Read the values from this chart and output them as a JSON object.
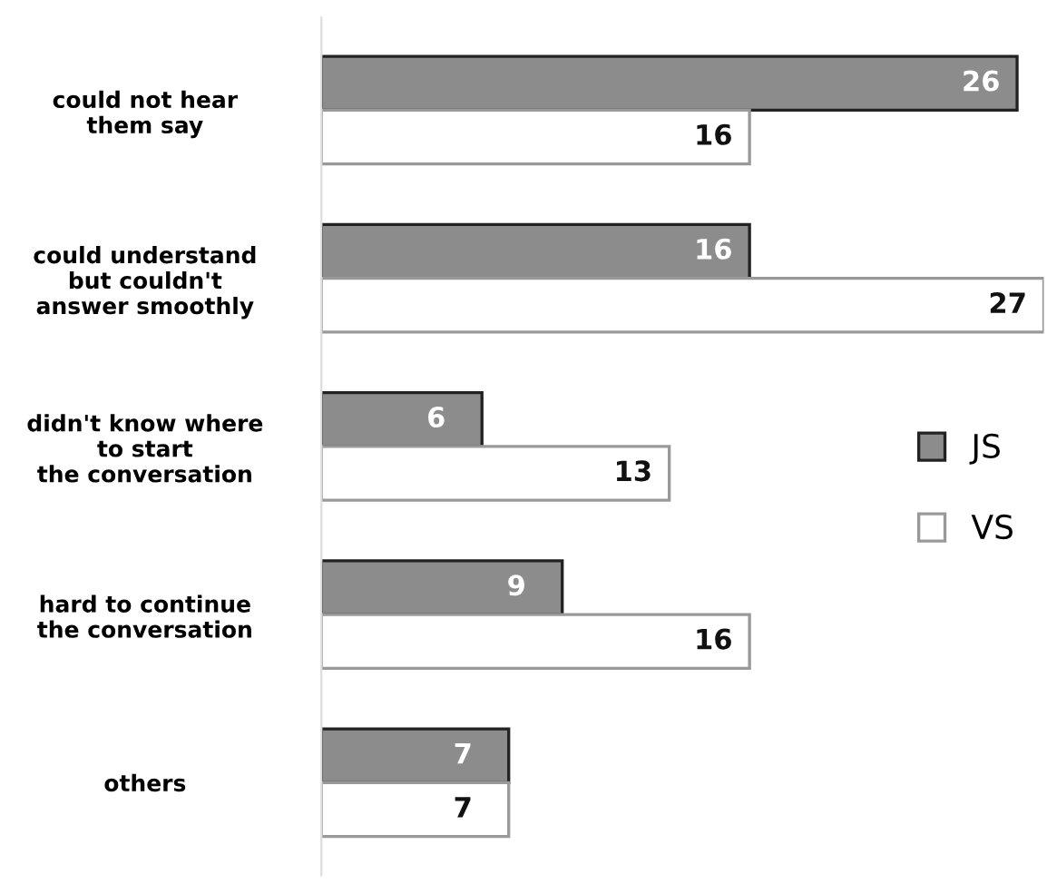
{
  "chart_data": {
    "type": "bar",
    "orientation": "horizontal",
    "categories": [
      "could not hear\nthem say",
      "could understand\nbut couldn't\nanswer smoothly",
      "didn't know where\nto start\nthe conversation",
      "hard to continue\nthe conversation",
      "others"
    ],
    "series": [
      {
        "name": "JS",
        "color": "#8c8c8c",
        "values": [
          26,
          16,
          6,
          9,
          7
        ]
      },
      {
        "name": "VS",
        "color": "#ffffff",
        "values": [
          16,
          27,
          13,
          16,
          7
        ]
      }
    ],
    "xlim": [
      0,
      27
    ],
    "data_labels": true,
    "legend": "right",
    "tick_labels": "y",
    "grid": false
  }
}
